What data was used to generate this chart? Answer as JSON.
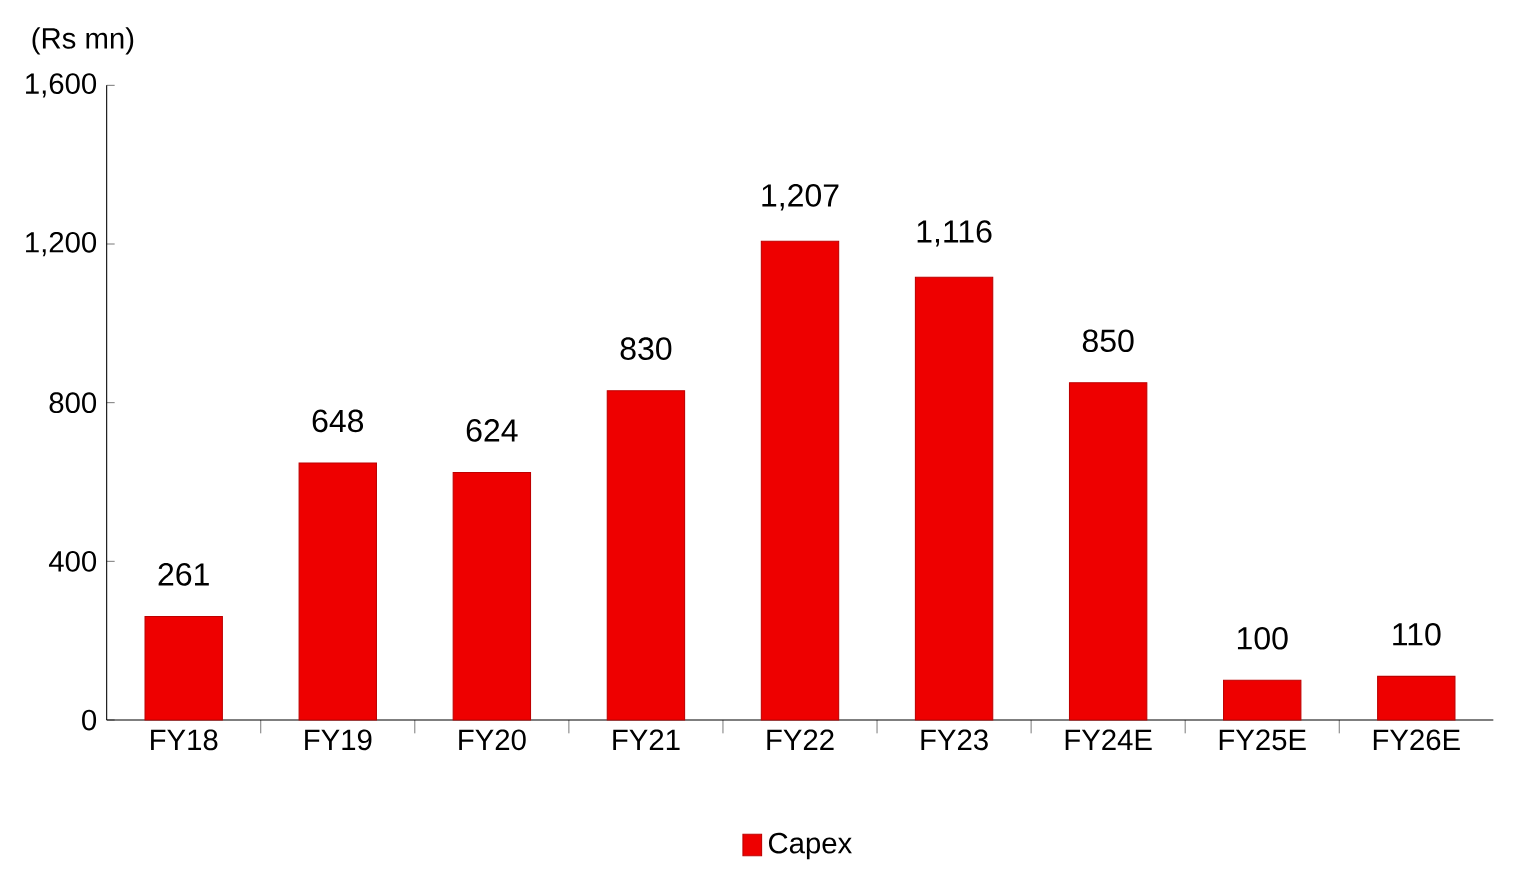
{
  "chart_data": {
    "type": "bar",
    "ylabel": "(Rs mn)",
    "categories": [
      "FY18",
      "FY19",
      "FY20",
      "FY21",
      "FY22",
      "FY23",
      "FY24E",
      "FY25E",
      "FY26E"
    ],
    "series": [
      {
        "name": "Capex",
        "color": "#ee0000",
        "values": [
          261,
          648,
          624,
          830,
          1207,
          1116,
          850,
          100,
          110
        ]
      }
    ],
    "ylim": [
      0,
      1600
    ],
    "yticks": [
      0,
      400,
      800,
      {
        "value": 1200,
        "label": "1,200"
      },
      {
        "value": 1600,
        "label": "1,600"
      }
    ],
    "value_labels": [
      "261",
      "648",
      "624",
      "830",
      "1,207",
      "1,116",
      "850",
      "100",
      "110"
    ],
    "legend": "bottom",
    "grid": false
  }
}
